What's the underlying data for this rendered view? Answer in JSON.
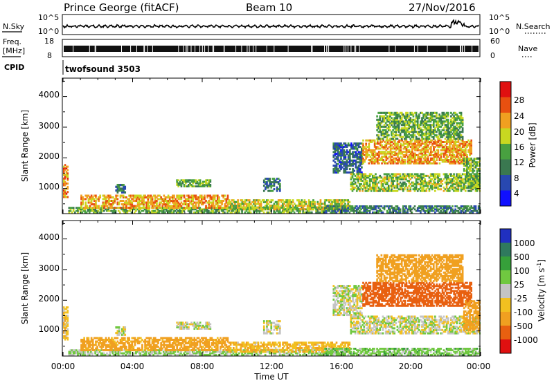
{
  "header": {
    "station": "Prince George (fitACF)",
    "beam": "Beam 10",
    "date": "27/Nov/2016"
  },
  "noise_panel": {
    "left_label": "N.Sky",
    "right_label": "N.Search",
    "left_ticks": [
      "10^5",
      "10^0"
    ],
    "right_ticks": [
      "10^5",
      "10^0"
    ],
    "series_left_style": "solid",
    "series_right_style": "dotted"
  },
  "freq_panel": {
    "left_label_line1": "Freq.",
    "left_label_line2": "[MHz]",
    "right_label": "Nave",
    "left_ticks": [
      "18",
      "8"
    ],
    "right_ticks": [
      "60",
      "0"
    ]
  },
  "cpid": {
    "label": "CPID",
    "value": "twofsound 3503"
  },
  "x_axis": {
    "label": "Time UT",
    "ticks": [
      "00:00",
      "04:00",
      "08:00",
      "12:00",
      "16:00",
      "20:00",
      "00:00"
    ],
    "range_hours": [
      0,
      24
    ]
  },
  "y_axis": {
    "label": "Slant Range [km]",
    "ticks": [
      "1000",
      "2000",
      "3000",
      "4000"
    ],
    "range_km": [
      180,
      4600
    ]
  },
  "power_colorbar": {
    "label": "Power [dB]",
    "ticks": [
      "4",
      "8",
      "12",
      "16",
      "20",
      "24",
      "28"
    ],
    "colors": [
      "#1010ff",
      "#2848b0",
      "#3a7850",
      "#48a040",
      "#c8d820",
      "#f0a020",
      "#e85010",
      "#e01010"
    ]
  },
  "velocity_colorbar": {
    "label_prefix": "Velocity",
    "label_units": "[m s",
    "label_exp": "-1",
    "label_close": "]",
    "ticks": [
      "1000",
      "500",
      "100",
      "25",
      "-25",
      "-100",
      "-500",
      "-1000"
    ],
    "colors": [
      "#2030c0",
      "#2f7a5e",
      "#36a03a",
      "#70c840",
      "#c4c4c4",
      "#f2c020",
      "#f0a020",
      "#e86010",
      "#e01010"
    ]
  },
  "chart_data": [
    {
      "type": "heatmap",
      "title": "Power",
      "xlabel": "Time UT",
      "ylabel": "Slant Range [km]",
      "xlim_hours": [
        0,
        24
      ],
      "ylim_km": [
        180,
        4600
      ],
      "colorbar_label": "Power [dB]",
      "colorbar_range_db": [
        0,
        32
      ],
      "regions": [
        {
          "t": [
            0.0,
            0.3
          ],
          "r": [
            700,
            1800
          ],
          "p": 24
        },
        {
          "t": [
            0.3,
            16.0
          ],
          "r": [
            200,
            400
          ],
          "p": 14
        },
        {
          "t": [
            1.0,
            9.5
          ],
          "r": [
            350,
            800
          ],
          "p": 22
        },
        {
          "t": [
            3.0,
            3.6
          ],
          "r": [
            850,
            1150
          ],
          "p": 10
        },
        {
          "t": [
            6.5,
            8.5
          ],
          "r": [
            1050,
            1300
          ],
          "p": 14
        },
        {
          "t": [
            9.5,
            16.5
          ],
          "r": [
            300,
            650
          ],
          "p": 18
        },
        {
          "t": [
            11.5,
            12.5
          ],
          "r": [
            900,
            1350
          ],
          "p": 9
        },
        {
          "t": [
            15.0,
            24.0
          ],
          "r": [
            200,
            450
          ],
          "p": 10
        },
        {
          "t": [
            15.5,
            17.2
          ],
          "r": [
            1500,
            2500
          ],
          "p": 8
        },
        {
          "t": [
            16.5,
            24.0
          ],
          "r": [
            900,
            1500
          ],
          "p": 16
        },
        {
          "t": [
            17.2,
            23.5
          ],
          "r": [
            1800,
            2600
          ],
          "p": 22
        },
        {
          "t": [
            18.0,
            23.0
          ],
          "r": [
            2600,
            3500
          ],
          "p": 14
        },
        {
          "t": [
            23.0,
            24.0
          ],
          "r": [
            1000,
            2000
          ],
          "p": 15
        }
      ]
    },
    {
      "type": "heatmap",
      "title": "Velocity",
      "xlabel": "Time UT",
      "ylabel": "Slant Range [km]",
      "xlim_hours": [
        0,
        24
      ],
      "ylim_km": [
        180,
        4600
      ],
      "colorbar_label": "Velocity [m s-1]",
      "colorbar_range_ms": [
        -1000,
        1000
      ],
      "regions": [
        {
          "t": [
            0.0,
            0.3
          ],
          "r": [
            700,
            1800
          ],
          "v": -60
        },
        {
          "t": [
            0.3,
            16.0
          ],
          "r": [
            200,
            400
          ],
          "v": 40
        },
        {
          "t": [
            1.0,
            9.5
          ],
          "r": [
            350,
            800
          ],
          "v": -150
        },
        {
          "t": [
            3.0,
            3.6
          ],
          "r": [
            850,
            1150
          ],
          "v": 0
        },
        {
          "t": [
            6.5,
            8.5
          ],
          "r": [
            1050,
            1300
          ],
          "v": 0
        },
        {
          "t": [
            9.5,
            16.5
          ],
          "r": [
            300,
            650
          ],
          "v": -80
        },
        {
          "t": [
            11.5,
            12.5
          ],
          "r": [
            900,
            1350
          ],
          "v": 0
        },
        {
          "t": [
            15.0,
            24.0
          ],
          "r": [
            200,
            450
          ],
          "v": 60
        },
        {
          "t": [
            15.5,
            17.2
          ],
          "r": [
            1500,
            2500
          ],
          "v": 0
        },
        {
          "t": [
            16.5,
            24.0
          ],
          "r": [
            900,
            1500
          ],
          "v": 0
        },
        {
          "t": [
            17.2,
            23.5
          ],
          "r": [
            1800,
            2600
          ],
          "v": -600
        },
        {
          "t": [
            18.0,
            23.0
          ],
          "r": [
            2600,
            3500
          ],
          "v": -400
        },
        {
          "t": [
            23.0,
            24.0
          ],
          "r": [
            1000,
            2000
          ],
          "v": -200
        }
      ]
    }
  ]
}
